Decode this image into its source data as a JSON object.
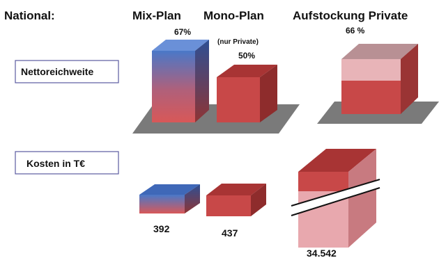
{
  "chart_data": {
    "type": "bar",
    "title": "",
    "row_header": "National:",
    "columns": [
      "Mix-Plan",
      "Mono-Plan",
      "Aufstockung Private"
    ],
    "column_notes": [
      "",
      "(nur Private)",
      ""
    ],
    "rows": [
      {
        "label": "Nettoreichweite",
        "values": [
          67,
          50,
          66
        ],
        "value_labels": [
          "67%",
          "50%",
          "66 %"
        ]
      },
      {
        "label": "Kosten in T€",
        "values": [
          392,
          437,
          34542
        ],
        "value_labels": [
          "392",
          "437",
          "34.542"
        ]
      }
    ],
    "axis_break": true,
    "colors": {
      "mix_top": "#4a78c8",
      "mix_bottom": "#d85858",
      "mono": "#c84848",
      "aufstockung_light": "#e8b4b8",
      "floor": "#7a7a7a"
    }
  }
}
